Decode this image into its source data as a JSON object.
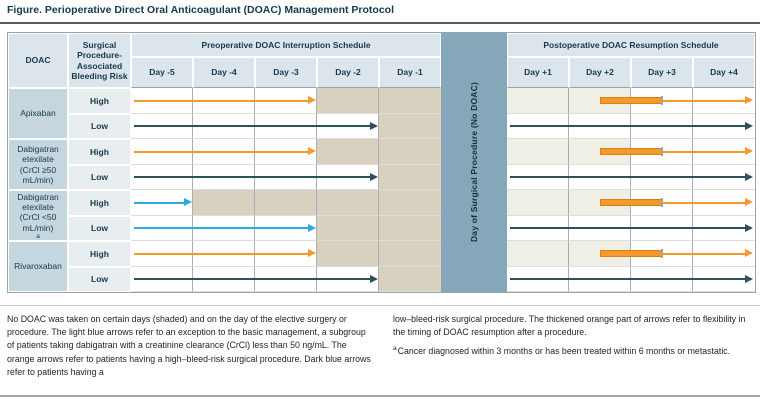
{
  "title": "Figure. Perioperative Direct Oral Anticoagulant (DOAC) Management Protocol",
  "table": {
    "col_headers": {
      "doac": "DOAC",
      "risk": "Surgical Procedure-Associated Bleeding Risk",
      "preop_group": "Preoperative DOAC Interruption Schedule",
      "postop_group": "Postoperative DOAC Resumption Schedule",
      "preop_days": [
        "Day -5",
        "Day -4",
        "Day -3",
        "Day -2",
        "Day -1"
      ],
      "postop_days": [
        "Day +1",
        "Day +2",
        "Day +3",
        "Day +4"
      ],
      "band": "Day of Surgical Procedure (No DOAC)"
    },
    "drugs": [
      {
        "name": "Apixaban"
      },
      {
        "name": "Dabigatran etexilate (CrCl ≥50 mL/min)"
      },
      {
        "name": "Dabigatran etexilate (CrCl <50 mL/min)",
        "sup": "a"
      },
      {
        "name": "Rivaroxaban"
      }
    ],
    "rows": [
      {
        "drug_index": 0,
        "risk": "High",
        "preop": {
          "arrow": "orange",
          "arrow_span_days": 3,
          "shaded_count": 2,
          "shaded_days": [
            "Day -2",
            "Day -1"
          ]
        },
        "postop": {
          "type": "flex",
          "arrow": "orange",
          "shaded_count": 2,
          "shaded_days": [
            "Day +1",
            "Day +2"
          ]
        }
      },
      {
        "drug_index": 0,
        "risk": "Low",
        "preop": {
          "arrow": "dark",
          "arrow_span_days": 4,
          "shaded_count": 1,
          "shaded_days": [
            "Day -1"
          ]
        },
        "postop": {
          "type": "full",
          "arrow": "dark",
          "shaded_count": 0,
          "shaded_days": []
        }
      },
      {
        "drug_index": 1,
        "risk": "High",
        "preop": {
          "arrow": "orange",
          "arrow_span_days": 3,
          "shaded_count": 2,
          "shaded_days": [
            "Day -2",
            "Day -1"
          ]
        },
        "postop": {
          "type": "flex",
          "arrow": "orange",
          "shaded_count": 2,
          "shaded_days": [
            "Day +1",
            "Day +2"
          ]
        }
      },
      {
        "drug_index": 1,
        "risk": "Low",
        "preop": {
          "arrow": "dark",
          "arrow_span_days": 4,
          "shaded_count": 1,
          "shaded_days": [
            "Day -1"
          ]
        },
        "postop": {
          "type": "full",
          "arrow": "dark",
          "shaded_count": 0,
          "shaded_days": []
        }
      },
      {
        "drug_index": 2,
        "risk": "High",
        "preop": {
          "arrow": "light",
          "arrow_span_days": 1,
          "shaded_count": 4,
          "shaded_days": [
            "Day -4",
            "Day -3",
            "Day -2",
            "Day -1"
          ]
        },
        "postop": {
          "type": "flex",
          "arrow": "orange",
          "shaded_count": 2,
          "shaded_days": [
            "Day +1",
            "Day +2"
          ]
        }
      },
      {
        "drug_index": 2,
        "risk": "Low",
        "preop": {
          "arrow": "light",
          "arrow_span_days": 3,
          "shaded_count": 2,
          "shaded_days": [
            "Day -2",
            "Day -1"
          ]
        },
        "postop": {
          "type": "full",
          "arrow": "dark",
          "shaded_count": 0,
          "shaded_days": []
        }
      },
      {
        "drug_index": 3,
        "risk": "High",
        "preop": {
          "arrow": "orange",
          "arrow_span_days": 3,
          "shaded_count": 2,
          "shaded_days": [
            "Day -2",
            "Day -1"
          ]
        },
        "postop": {
          "type": "flex",
          "arrow": "orange",
          "shaded_count": 2,
          "shaded_days": [
            "Day +1",
            "Day +2"
          ]
        }
      },
      {
        "drug_index": 3,
        "risk": "Low",
        "preop": {
          "arrow": "dark",
          "arrow_span_days": 4,
          "shaded_count": 1,
          "shaded_days": [
            "Day -1"
          ]
        },
        "postop": {
          "type": "full",
          "arrow": "dark",
          "shaded_count": 0,
          "shaded_days": []
        }
      }
    ]
  },
  "colors": {
    "orange_arrow": "#F3992E",
    "dark_blue_arrow": "#2E5159",
    "light_blue_arrow": "#29ABE2",
    "preop_shaded_cell": "#D8D1C0",
    "postop_shaded_cell": "#F0EFE6",
    "surgery_band": "#84A7B9",
    "header_cell": "#DCE5EB",
    "doac_cell": "#C5D6DF",
    "risk_cell": "#E8EDF0",
    "flex_bar_border": "#D9820F"
  },
  "footnotes": {
    "left": "No DOAC was taken on certain days (shaded) and on the day of the elective surgery or procedure. The light blue arrows refer to an exception to the basic management, a subgroup of patients taking dabigatran with a creatinine clearance (CrCl) less than 50 ng/mL. The orange arrows refer to patients having a high–bleed-risk surgical procedure. Dark blue arrows refer to patients having a",
    "right": "low–bleed-risk surgical procedure. The thickened orange part of arrows refer to flexibility in the timing of DOAC resumption after a procedure.",
    "note_a_marker": "a",
    "note_a": "Cancer diagnosed within 3 months or has been treated within 6 months or metastatic."
  }
}
